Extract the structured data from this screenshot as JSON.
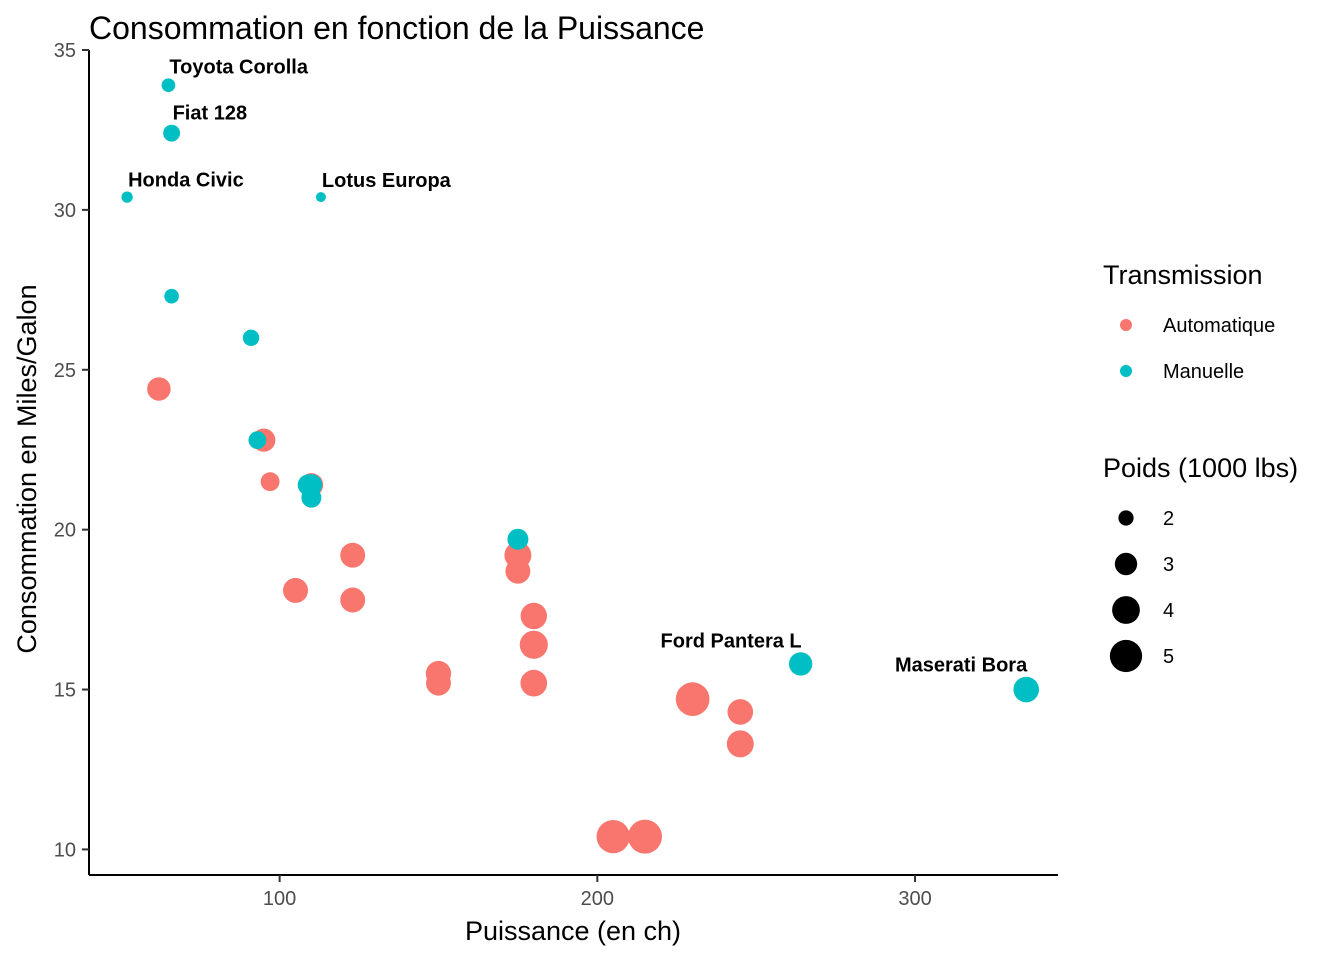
{
  "chart_data": {
    "type": "scatter",
    "title": "Consommation en fonction de la Puissance",
    "xlabel": "Puissance (en ch)",
    "ylabel": "Consommation en Miles/Galon",
    "xlim": [
      40,
      345
    ],
    "ylim": [
      9.2,
      35
    ],
    "x_ticks": [
      100,
      200,
      300
    ],
    "y_ticks": [
      10,
      15,
      20,
      25,
      30,
      35
    ],
    "grid": false,
    "series": [
      {
        "name": "Automatique",
        "color": "#F8766D",
        "points": [
          {
            "x": 110,
            "y": 21.4,
            "wt": 3.215
          },
          {
            "x": 175,
            "y": 18.7,
            "wt": 3.44
          },
          {
            "x": 105,
            "y": 18.1,
            "wt": 3.46
          },
          {
            "x": 245,
            "y": 14.3,
            "wt": 3.57
          },
          {
            "x": 62,
            "y": 24.4,
            "wt": 3.19
          },
          {
            "x": 95,
            "y": 22.8,
            "wt": 3.15
          },
          {
            "x": 123,
            "y": 19.2,
            "wt": 3.44
          },
          {
            "x": 123,
            "y": 17.8,
            "wt": 3.44
          },
          {
            "x": 180,
            "y": 16.4,
            "wt": 4.07
          },
          {
            "x": 180,
            "y": 17.3,
            "wt": 3.73
          },
          {
            "x": 180,
            "y": 15.2,
            "wt": 3.78
          },
          {
            "x": 205,
            "y": 10.4,
            "wt": 5.25
          },
          {
            "x": 215,
            "y": 10.4,
            "wt": 5.424
          },
          {
            "x": 230,
            "y": 14.7,
            "wt": 5.345
          },
          {
            "x": 97,
            "y": 21.5,
            "wt": 2.465
          },
          {
            "x": 150,
            "y": 15.5,
            "wt": 3.52
          },
          {
            "x": 150,
            "y": 15.2,
            "wt": 3.435
          },
          {
            "x": 245,
            "y": 13.3,
            "wt": 3.84
          },
          {
            "x": 175,
            "y": 19.2,
            "wt": 3.845
          }
        ]
      },
      {
        "name": "Manuelle",
        "color": "#00BFC4",
        "points": [
          {
            "x": 110,
            "y": 21.0,
            "wt": 2.62
          },
          {
            "x": 110,
            "y": 21.4,
            "wt": 2.875
          },
          {
            "x": 93,
            "y": 22.8,
            "wt": 2.32
          },
          {
            "x": 66,
            "y": 32.4,
            "wt": 2.2,
            "label": "Fiat 128"
          },
          {
            "x": 52,
            "y": 30.4,
            "wt": 1.615,
            "label": "Honda Civic"
          },
          {
            "x": 65,
            "y": 33.9,
            "wt": 1.835,
            "label": "Toyota Corolla"
          },
          {
            "x": 66,
            "y": 27.3,
            "wt": 1.935
          },
          {
            "x": 91,
            "y": 26.0,
            "wt": 2.14
          },
          {
            "x": 113,
            "y": 30.4,
            "wt": 1.513,
            "label": "Lotus Europa"
          },
          {
            "x": 264,
            "y": 15.8,
            "wt": 3.17,
            "label": "Ford Pantera L"
          },
          {
            "x": 175,
            "y": 19.7,
            "wt": 2.77
          },
          {
            "x": 335,
            "y": 15.0,
            "wt": 3.57,
            "label": "Maserati Bora"
          },
          {
            "x": 109,
            "y": 21.4,
            "wt": 2.78
          }
        ]
      }
    ],
    "legends": [
      {
        "title": "Transmission",
        "position": "right",
        "items": [
          {
            "label": "Automatique",
            "color": "#F8766D"
          },
          {
            "label": "Manuelle",
            "color": "#00BFC4"
          }
        ]
      },
      {
        "title": "Poids (1000 lbs)",
        "position": "right",
        "items": [
          {
            "label": "2",
            "value": 2
          },
          {
            "label": "3",
            "value": 3
          },
          {
            "label": "4",
            "value": 4
          },
          {
            "label": "5",
            "value": 5
          }
        ]
      }
    ],
    "size_range_wt": [
      1.513,
      5.424
    ]
  }
}
